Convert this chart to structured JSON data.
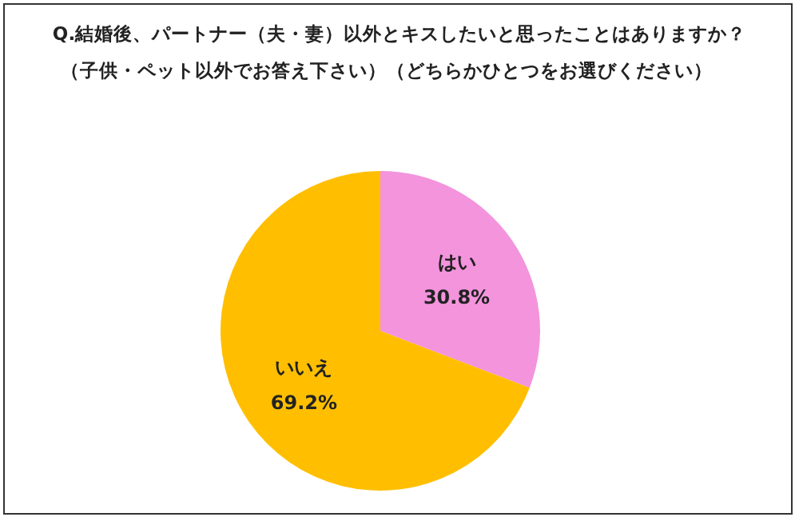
{
  "chart_data": {
    "type": "pie",
    "title": "Q.結婚後、パートナー（夫・妻）以外とキスしたいと思ったことはありますか？",
    "subtitle": "（子供・ペット以外でお答え下さい）（どちらかひとつをお選びください）",
    "categories": [
      "はい",
      "いいえ"
    ],
    "values": [
      30.8,
      69.2
    ],
    "colors": [
      "#f394dd",
      "#ffbf00"
    ],
    "value_labels": [
      "30.8%",
      "69.2%"
    ],
    "legend": false
  }
}
